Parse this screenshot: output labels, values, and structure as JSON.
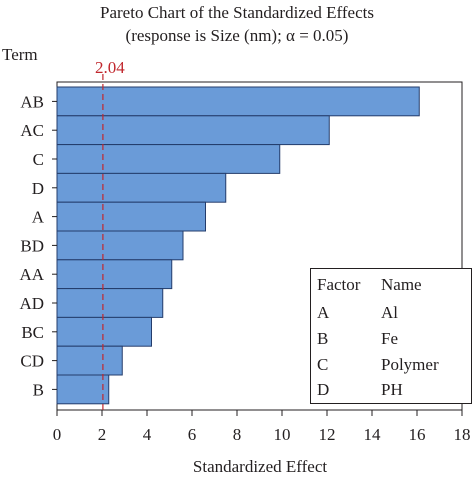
{
  "chart_data": {
    "type": "bar",
    "orientation": "horizontal",
    "title": "Pareto Chart of the Standardized Effects",
    "subtitle": "(response is Size (nm); α = 0.05)",
    "ylabel": "Term",
    "xlabel": "Standardized Effect",
    "categories": [
      "AB",
      "AC",
      "C",
      "D",
      "A",
      "BD",
      "AA",
      "AD",
      "BC",
      "CD",
      "B"
    ],
    "values": [
      16.1,
      12.1,
      9.9,
      7.5,
      6.6,
      5.6,
      5.1,
      4.7,
      4.2,
      2.9,
      2.3
    ],
    "xlim": [
      0,
      18
    ],
    "xticks": [
      "0",
      "2",
      "4",
      "6",
      "8",
      "10",
      "12",
      "14",
      "16",
      "18"
    ],
    "reference_line": {
      "value": 2.04,
      "label": "2.04",
      "color": "#c1272d"
    },
    "bar_color": "#6a9bd8",
    "bar_edge_color": "#243c6b",
    "grid": false,
    "legend": {
      "position": "bottom-right",
      "headers": [
        "Factor",
        "Name"
      ],
      "rows": [
        [
          "A",
          "Al"
        ],
        [
          "B",
          "Fe"
        ],
        [
          "C",
          "Polymer"
        ],
        [
          "D",
          "PH"
        ]
      ]
    }
  }
}
